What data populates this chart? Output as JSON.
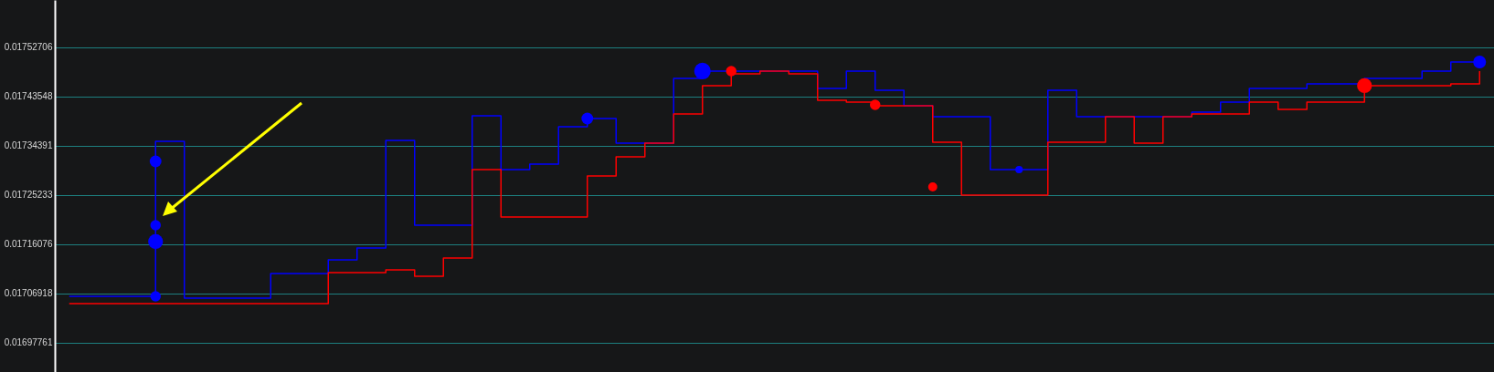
{
  "chart_data": {
    "type": "step",
    "categories": [
      null,
      null,
      null,
      null,
      null,
      null,
      null,
      null,
      null,
      null,
      null,
      null,
      null,
      null,
      null,
      null,
      null,
      null,
      null,
      null,
      null,
      null,
      null,
      null,
      null,
      null,
      null,
      null,
      null,
      null,
      null,
      null,
      null,
      null,
      null,
      null,
      null,
      null,
      null,
      null,
      null,
      null,
      null,
      null,
      null,
      null,
      null,
      null,
      null,
      null
    ],
    "ylim": [
      0.0169233,
      0.0176152
    ],
    "yticks": [
      0.01697761,
      0.01706918,
      0.01716076,
      0.01725233,
      0.01734391,
      0.01743548,
      0.01752706
    ],
    "grid": "y",
    "tick_labels": "y",
    "series": [
      {
        "color": "#0000ff",
        "values": [
          0.0170641,
          0.0170641,
          0.0170641,
          0.0173524,
          0.0170607,
          0.0170607,
          0.0170607,
          0.0171065,
          0.0171065,
          0.0171319,
          0.017154,
          0.0173541,
          0.0171964,
          0.0171964,
          0.0173999,
          0.0172998,
          0.01731,
          0.0173795,
          0.0173948,
          0.017349,
          0.017349,
          0.0174694,
          0.017483,
          0.017483,
          0.017483,
          0.017483,
          0.0174507,
          0.017483,
          0.0174474,
          0.0174185,
          0.0173982,
          0.0173982,
          0.0172998,
          0.0172998,
          0.0174474,
          0.0173982,
          0.0173982,
          0.0173982,
          0.0173982,
          0.0174067,
          0.0174253,
          0.0174507,
          0.0174507,
          0.0174592,
          0.0174592,
          0.0174694,
          0.0174694,
          0.017483,
          0.0175,
          0.0175
        ]
      },
      {
        "color": "#ff0000",
        "values": [
          0.0170505,
          0.0170505,
          0.0170505,
          0.0170505,
          0.0170505,
          0.0170505,
          0.0170505,
          0.0170505,
          0.0170505,
          0.0171082,
          0.0171082,
          0.0171133,
          0.0171014,
          0.0171353,
          0.0172998,
          0.0172116,
          0.0172116,
          0.0172116,
          0.0172879,
          0.0173236,
          0.017349,
          0.0174033,
          0.0174558,
          0.0174779,
          0.017483,
          0.0174779,
          0.0174287,
          0.0174253,
          0.0174185,
          0.0174185,
          0.0173507,
          0.0172523,
          0.0172523,
          0.0172523,
          0.0173507,
          0.0173507,
          0.0173982,
          0.017349,
          0.0173982,
          0.0174033,
          0.0174033,
          0.0174253,
          0.0174117,
          0.0174253,
          0.0174253,
          0.0174558,
          0.0174558,
          0.0174558,
          0.0174592,
          0.017483
        ]
      },
      {
        "type": "bubble",
        "color": "#0000ff",
        "values": [
          null,
          null,
          null,
          0.0173151,
          null,
          null,
          null,
          null,
          null,
          null,
          null,
          null,
          null,
          null,
          null,
          null,
          null,
          null,
          0.0173948,
          null,
          null,
          null,
          0.017483,
          null,
          null,
          null,
          null,
          null,
          null,
          null,
          null,
          null,
          null,
          0.0172998,
          null,
          null,
          null,
          null,
          null,
          null,
          null,
          null,
          null,
          null,
          null,
          null,
          null,
          null,
          null,
          0.0175
        ],
        "sizes": [
          null,
          null,
          null,
          0.5,
          null,
          null,
          null,
          null,
          null,
          null,
          null,
          null,
          null,
          null,
          null,
          null,
          null,
          null,
          0.5,
          null,
          null,
          null,
          1.0,
          null,
          null,
          null,
          null,
          null,
          null,
          null,
          null,
          null,
          null,
          0.2,
          null,
          null,
          null,
          null,
          null,
          null,
          null,
          null,
          null,
          null,
          null,
          null,
          null,
          null,
          null,
          0.6
        ]
      },
      {
        "type": "bubble",
        "color": "#0000ff",
        "values": [
          null,
          null,
          null,
          0.0171659,
          null,
          null,
          null,
          null,
          null,
          null,
          null,
          null,
          null,
          null,
          null,
          null,
          null,
          null,
          null,
          null,
          null,
          null,
          null,
          null,
          null,
          null,
          null,
          null,
          null,
          null,
          null,
          null,
          null,
          null,
          null,
          null,
          null,
          null,
          null,
          null,
          null,
          null,
          null,
          null,
          null,
          null,
          null,
          null,
          null,
          null
        ],
        "sizes": [
          null,
          null,
          null,
          0.8,
          null,
          null,
          null,
          null,
          null,
          null,
          null,
          null,
          null,
          null,
          null,
          null,
          null,
          null,
          null,
          null,
          null,
          null,
          null,
          null,
          null,
          null,
          null,
          null,
          null,
          null,
          null,
          null,
          null,
          null,
          null,
          null,
          null,
          null,
          null,
          null,
          null,
          null,
          null,
          null,
          null,
          null,
          null,
          null,
          null,
          null
        ]
      },
      {
        "type": "bubble",
        "color": "#0000ff",
        "values": [
          null,
          null,
          null,
          0.0171964,
          null,
          null,
          null,
          null,
          null,
          null,
          null,
          null,
          null,
          null,
          null,
          null,
          null,
          null,
          null,
          null,
          null,
          null,
          null,
          null,
          null,
          null,
          null,
          null,
          null,
          null,
          null,
          null,
          null,
          null,
          null,
          null,
          null,
          null,
          null,
          null,
          null,
          null,
          null,
          null,
          null,
          null,
          null,
          null,
          null,
          null
        ],
        "sizes": [
          null,
          null,
          null,
          0.4,
          null,
          null,
          null,
          null,
          null,
          null,
          null,
          null,
          null,
          null,
          null,
          null,
          null,
          null,
          null,
          null,
          null,
          null,
          null,
          null,
          null,
          null,
          null,
          null,
          null,
          null,
          null,
          null,
          null,
          null,
          null,
          null,
          null,
          null,
          null,
          null,
          null,
          null,
          null,
          null,
          null,
          null,
          null,
          null,
          null,
          null
        ]
      },
      {
        "type": "bubble",
        "color": "#0000ff",
        "values": [
          null,
          null,
          null,
          0.0170641,
          null,
          null,
          null,
          null,
          null,
          null,
          null,
          null,
          null,
          null,
          null,
          null,
          null,
          null,
          null,
          null,
          null,
          null,
          null,
          null,
          null,
          null,
          null,
          null,
          null,
          null,
          null,
          null,
          null,
          null,
          null,
          null,
          null,
          null,
          null,
          null,
          null,
          null,
          null,
          null,
          null,
          null,
          null,
          null,
          null,
          null
        ],
        "sizes": [
          null,
          null,
          null,
          0.4,
          null,
          null,
          null,
          null,
          null,
          null,
          null,
          null,
          null,
          null,
          null,
          null,
          null,
          null,
          null,
          null,
          null,
          null,
          null,
          null,
          null,
          null,
          null,
          null,
          null,
          null,
          null,
          null,
          null,
          null,
          null,
          null,
          null,
          null,
          null,
          null,
          null,
          null,
          null,
          null,
          null,
          null,
          null,
          null,
          null,
          null
        ]
      },
      {
        "type": "bubble",
        "color": "#ff0000",
        "values": [
          null,
          null,
          null,
          null,
          null,
          null,
          null,
          null,
          null,
          null,
          null,
          null,
          null,
          null,
          null,
          null,
          null,
          null,
          null,
          null,
          null,
          null,
          null,
          0.017483,
          null,
          null,
          null,
          null,
          0.0174202,
          null,
          0.0172676,
          null,
          null,
          null,
          null,
          null,
          null,
          null,
          null,
          null,
          null,
          null,
          null,
          null,
          null,
          0.0174558,
          null,
          null,
          null,
          null
        ],
        "sizes": [
          null,
          null,
          null,
          null,
          null,
          null,
          null,
          null,
          null,
          null,
          null,
          null,
          null,
          null,
          null,
          null,
          null,
          null,
          null,
          null,
          null,
          null,
          null,
          0.4,
          null,
          null,
          null,
          null,
          0.4,
          null,
          0.3,
          null,
          null,
          null,
          null,
          null,
          null,
          null,
          null,
          null,
          null,
          null,
          null,
          null,
          null,
          0.8,
          null,
          null,
          null,
          null
        ]
      }
    ]
  }
}
